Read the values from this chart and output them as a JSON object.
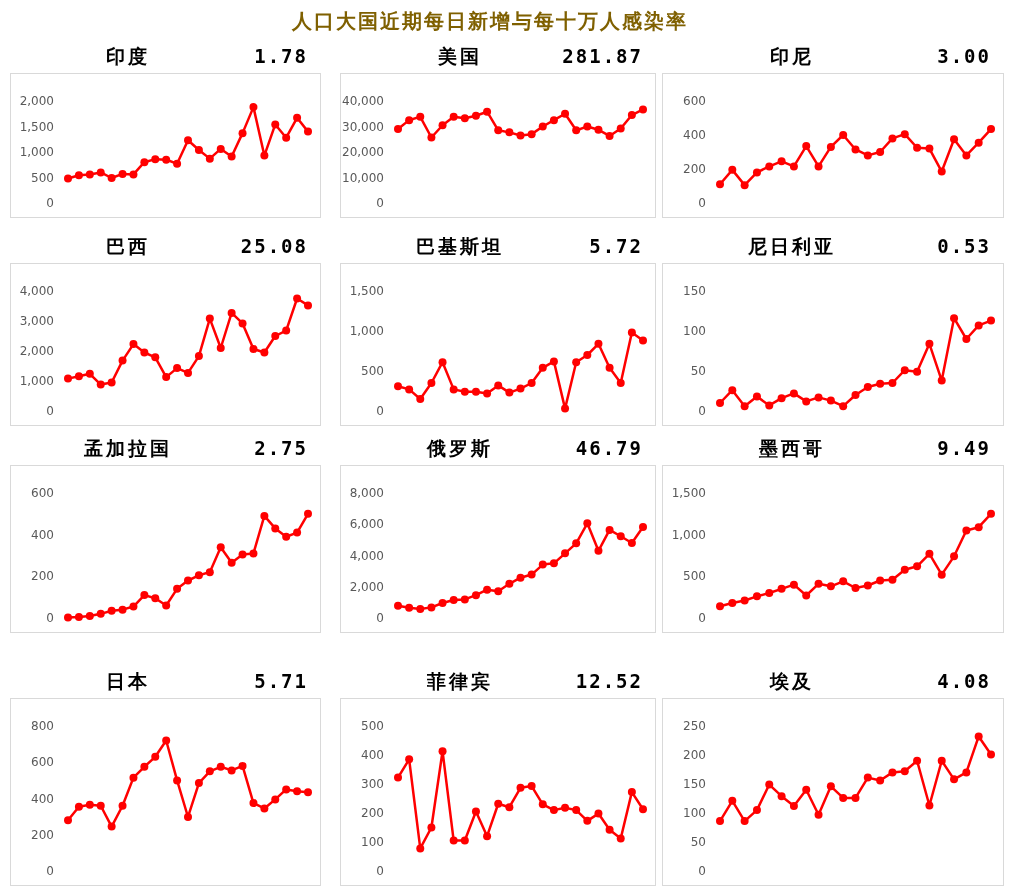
{
  "chart_data": [
    {
      "type": "line",
      "title": "印度",
      "subtitle": "1.78",
      "annotations": [
        "人口大国近期每日新增与每十万人感染率"
      ],
      "categories": [
        null,
        null,
        null,
        null,
        null,
        null,
        null,
        null,
        null,
        null,
        null,
        null,
        null,
        null,
        null,
        null,
        null,
        null,
        null,
        null,
        null,
        null,
        null
      ],
      "values": [
        480,
        545,
        560,
        600,
        490,
        570,
        560,
        800,
        860,
        850,
        770,
        1230,
        1040,
        870,
        1060,
        910,
        1370,
        1880,
        930,
        1540,
        1280,
        1670,
        1400
      ],
      "color": "#ff0000",
      "marker": "circle",
      "ylim": [
        0,
        2000
      ],
      "yticks": [
        0,
        500,
        {
          "value": 1000,
          "label": "1,000"
        },
        {
          "value": 1500,
          "label": "1,500"
        },
        {
          "value": 2000,
          "label": "2,000"
        }
      ]
    },
    {
      "type": "line",
      "title": "美国",
      "subtitle": "281.87",
      "categories": [
        null,
        null,
        null,
        null,
        null,
        null,
        null,
        null,
        null,
        null,
        null,
        null,
        null,
        null,
        null,
        null,
        null,
        null,
        null,
        null,
        null,
        null,
        null
      ],
      "values": [
        29000,
        32500,
        33800,
        25700,
        30500,
        33800,
        33200,
        34200,
        35800,
        28500,
        27700,
        26500,
        27000,
        30000,
        32500,
        35000,
        28500,
        30000,
        28700,
        26300,
        29200,
        34500,
        36700
      ],
      "color": "#ff0000",
      "marker": "circle",
      "ylim": [
        0,
        40000
      ],
      "yticks": [
        0,
        {
          "value": 10000,
          "label": "10,000"
        },
        {
          "value": 20000,
          "label": "20,000"
        },
        {
          "value": 30000,
          "label": "30,000"
        },
        {
          "value": 40000,
          "label": "40,000"
        }
      ]
    },
    {
      "type": "line",
      "title": "印尼",
      "subtitle": "3.00",
      "categories": [
        null,
        null,
        null,
        null,
        null,
        null,
        null,
        null,
        null,
        null,
        null,
        null,
        null,
        null,
        null,
        null,
        null,
        null,
        null,
        null,
        null,
        null,
        null
      ],
      "values": [
        110,
        195,
        105,
        180,
        215,
        245,
        215,
        335,
        215,
        330,
        400,
        315,
        280,
        300,
        380,
        405,
        325,
        320,
        185,
        375,
        280,
        355,
        435
      ],
      "color": "#ff0000",
      "marker": "circle",
      "ylim": [
        0,
        600
      ],
      "yticks": [
        0,
        200,
        400,
        600
      ]
    },
    {
      "type": "line",
      "title": "巴西",
      "subtitle": "25.08",
      "categories": [
        null,
        null,
        null,
        null,
        null,
        null,
        null,
        null,
        null,
        null,
        null,
        null,
        null,
        null,
        null,
        null,
        null,
        null,
        null,
        null,
        null,
        null,
        null
      ],
      "values": [
        1080,
        1160,
        1240,
        880,
        950,
        1680,
        2230,
        1950,
        1790,
        1130,
        1430,
        1270,
        1830,
        3080,
        2100,
        3270,
        2920,
        2070,
        1950,
        2500,
        2680,
        3750,
        3520
      ],
      "color": "#ff0000",
      "marker": "circle",
      "ylim": [
        0,
        4000
      ],
      "yticks": [
        0,
        {
          "value": 1000,
          "label": "1,000"
        },
        {
          "value": 2000,
          "label": "2,000"
        },
        {
          "value": 3000,
          "label": "3,000"
        },
        {
          "value": 4000,
          "label": "4,000"
        }
      ]
    },
    {
      "type": "line",
      "title": "巴基斯坦",
      "subtitle": "5.72",
      "categories": [
        null,
        null,
        null,
        null,
        null,
        null,
        null,
        null,
        null,
        null,
        null,
        null,
        null,
        null,
        null,
        null,
        null,
        null,
        null,
        null,
        null,
        null,
        null
      ],
      "values": [
        310,
        270,
        150,
        350,
        610,
        270,
        240,
        240,
        220,
        320,
        230,
        280,
        350,
        540,
        620,
        30,
        610,
        700,
        840,
        540,
        350,
        980,
        880
      ],
      "color": "#ff0000",
      "marker": "circle",
      "ylim": [
        0,
        1500
      ],
      "yticks": [
        0,
        500,
        {
          "value": 1000,
          "label": "1,000"
        },
        {
          "value": 1500,
          "label": "1,500"
        }
      ]
    },
    {
      "type": "line",
      "title": "尼日利亚",
      "subtitle": "0.53",
      "categories": [
        null,
        null,
        null,
        null,
        null,
        null,
        null,
        null,
        null,
        null,
        null,
        null,
        null,
        null,
        null,
        null,
        null,
        null,
        null,
        null,
        null,
        null,
        null
      ],
      "values": [
        10,
        26,
        6,
        18,
        7,
        16,
        22,
        12,
        17,
        13,
        6,
        20,
        30,
        34,
        35,
        51,
        49,
        84,
        38,
        116,
        90,
        107,
        113
      ],
      "color": "#ff0000",
      "marker": "circle",
      "ylim": [
        0,
        150
      ],
      "yticks": [
        0,
        50,
        100,
        150
      ]
    },
    {
      "type": "line",
      "title": "孟加拉国",
      "subtitle": "2.75",
      "categories": [
        null,
        null,
        null,
        null,
        null,
        null,
        null,
        null,
        null,
        null,
        null,
        null,
        null,
        null,
        null,
        null,
        null,
        null,
        null,
        null,
        null,
        null,
        null
      ],
      "values": [
        3,
        5,
        10,
        20,
        35,
        40,
        55,
        110,
        95,
        60,
        140,
        180,
        205,
        220,
        340,
        265,
        305,
        310,
        490,
        430,
        390,
        410,
        500
      ],
      "color": "#ff0000",
      "marker": "circle",
      "ylim": [
        0,
        600
      ],
      "yticks": [
        0,
        200,
        400,
        600
      ]
    },
    {
      "type": "line",
      "title": "俄罗斯",
      "subtitle": "46.79",
      "categories": [
        null,
        null,
        null,
        null,
        null,
        null,
        null,
        null,
        null,
        null,
        null,
        null,
        null,
        null,
        null,
        null,
        null,
        null,
        null,
        null,
        null,
        null,
        null
      ],
      "values": [
        790,
        650,
        580,
        680,
        960,
        1150,
        1190,
        1460,
        1810,
        1710,
        2190,
        2580,
        2780,
        3420,
        3500,
        4140,
        4780,
        6060,
        4300,
        5640,
        5230,
        4800,
        5820
      ],
      "color": "#ff0000",
      "marker": "circle",
      "ylim": [
        0,
        8000
      ],
      "yticks": [
        0,
        {
          "value": 2000,
          "label": "2,000"
        },
        {
          "value": 4000,
          "label": "4,000"
        },
        {
          "value": 6000,
          "label": "6,000"
        },
        {
          "value": 8000,
          "label": "8,000"
        }
      ]
    },
    {
      "type": "line",
      "title": "墨西哥",
      "subtitle": "9.49",
      "categories": [
        null,
        null,
        null,
        null,
        null,
        null,
        null,
        null,
        null,
        null,
        null,
        null,
        null,
        null,
        null,
        null,
        null,
        null,
        null,
        null,
        null,
        null,
        null
      ],
      "values": [
        140,
        180,
        210,
        260,
        300,
        350,
        400,
        270,
        410,
        380,
        440,
        360,
        390,
        450,
        460,
        580,
        620,
        770,
        520,
        740,
        1050,
        1090,
        1250
      ],
      "color": "#ff0000",
      "marker": "circle",
      "ylim": [
        0,
        1500
      ],
      "yticks": [
        0,
        500,
        {
          "value": 1000,
          "label": "1,000"
        },
        {
          "value": 1500,
          "label": "1,500"
        }
      ]
    },
    {
      "type": "line",
      "title": "日本",
      "subtitle": "5.71",
      "categories": [
        null,
        null,
        null,
        null,
        null,
        null,
        null,
        null,
        null,
        null,
        null,
        null,
        null,
        null,
        null,
        null,
        null,
        null,
        null,
        null,
        null,
        null,
        null
      ],
      "values": [
        280,
        355,
        365,
        360,
        245,
        360,
        515,
        575,
        630,
        720,
        500,
        298,
        485,
        550,
        575,
        555,
        580,
        375,
        345,
        395,
        450,
        440,
        435
      ],
      "color": "#ff0000",
      "marker": "circle",
      "ylim": [
        0,
        800
      ],
      "yticks": [
        0,
        200,
        400,
        600,
        800
      ]
    },
    {
      "type": "line",
      "title": "菲律宾",
      "subtitle": "12.52",
      "categories": [
        null,
        null,
        null,
        null,
        null,
        null,
        null,
        null,
        null,
        null,
        null,
        null,
        null,
        null,
        null,
        null,
        null,
        null,
        null,
        null,
        null,
        null,
        null
      ],
      "values": [
        322,
        385,
        78,
        150,
        413,
        105,
        105,
        205,
        120,
        232,
        220,
        287,
        293,
        230,
        210,
        218,
        210,
        173,
        198,
        142,
        112,
        272,
        213
      ],
      "color": "#ff0000",
      "marker": "circle",
      "ylim": [
        0,
        500
      ],
      "yticks": [
        0,
        100,
        200,
        300,
        400,
        500
      ]
    },
    {
      "type": "line",
      "title": "埃及",
      "subtitle": "4.08",
      "categories": [
        null,
        null,
        null,
        null,
        null,
        null,
        null,
        null,
        null,
        null,
        null,
        null,
        null,
        null,
        null,
        null,
        null,
        null,
        null,
        null,
        null,
        null,
        null
      ],
      "values": [
        86,
        121,
        86,
        105,
        149,
        129,
        112,
        140,
        97,
        146,
        126,
        126,
        161,
        156,
        170,
        172,
        190,
        113,
        190,
        158,
        170,
        232,
        201
      ],
      "color": "#ff0000",
      "marker": "circle",
      "ylim": [
        0,
        250
      ],
      "yticks": [
        0,
        50,
        100,
        150,
        200,
        250
      ]
    }
  ]
}
